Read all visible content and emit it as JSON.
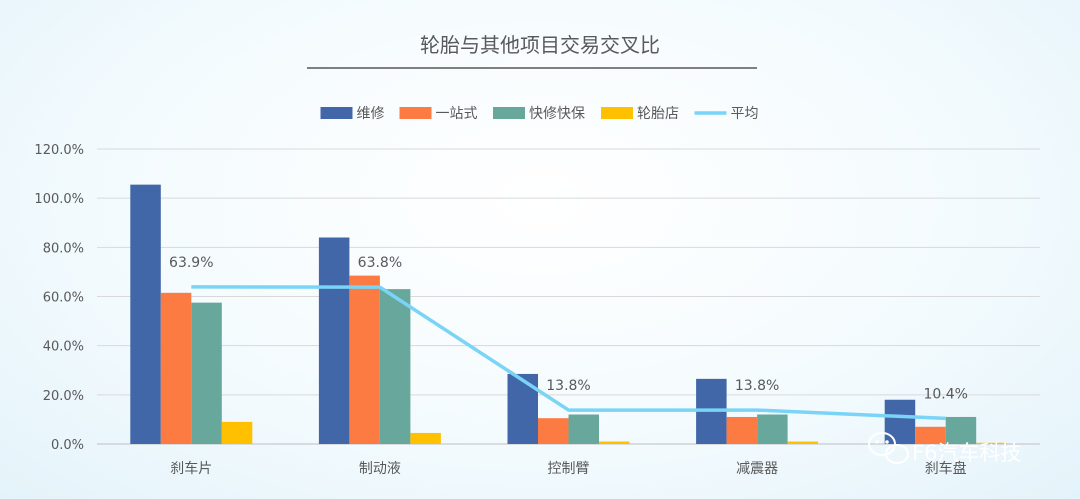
{
  "chart_data": {
    "type": "bar",
    "title": "轮胎与其他项目交易交叉比",
    "categories": [
      "刹车片",
      "制动液",
      "控制臂",
      "减震器",
      "刹车盘"
    ],
    "ylim": [
      0,
      120
    ],
    "yticks": [
      "0.0%",
      "20.0%",
      "40.0%",
      "60.0%",
      "80.0%",
      "100.0%",
      "120.0%"
    ],
    "grid": true,
    "legend_position": "top",
    "series": [
      {
        "name": "维修",
        "type": "bar",
        "color": "#4267a8",
        "values": [
          105.5,
          84,
          28.5,
          26.5,
          18
        ]
      },
      {
        "name": "一站式",
        "type": "bar",
        "color": "#fb7b43",
        "values": [
          61.5,
          68.5,
          10.5,
          11,
          7
        ]
      },
      {
        "name": "快修快保",
        "type": "bar",
        "color": "#68a89c",
        "values": [
          57.5,
          63,
          12,
          12,
          11
        ]
      },
      {
        "name": "轮胎店",
        "type": "bar",
        "color": "#ffc000",
        "values": [
          9,
          4.5,
          1,
          1,
          0.5
        ]
      },
      {
        "name": "平均",
        "type": "line",
        "color": "#79d4f6",
        "values": [
          63.9,
          63.8,
          13.8,
          13.8,
          10.4
        ],
        "labels": [
          "63.9%",
          "63.8%",
          "13.8%",
          "13.8%",
          "10.4%"
        ]
      }
    ]
  },
  "watermark": {
    "text": "F6汽车科技",
    "icon": "wechat-icon"
  }
}
